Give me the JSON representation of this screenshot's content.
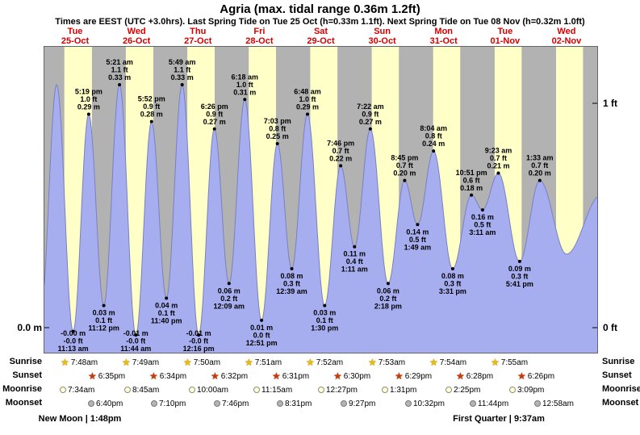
{
  "title": "Agria (max. tidal range 0.36m 1.2ft)",
  "subtitle": "Times are EEST (UTC +3.0hrs). Last Spring Tide on Tue 25 Oct (h=0.33m 1.1ft). Next Spring Tide on Tue 08 Nov (h=0.32m 1.0ft)",
  "axis": {
    "left": "0.0 m",
    "right_top": "1 ft",
    "right_bottom": "0 ft"
  },
  "days": [
    {
      "weekday": "Tue",
      "date": "25-Oct"
    },
    {
      "weekday": "Wed",
      "date": "26-Oct"
    },
    {
      "weekday": "Thu",
      "date": "27-Oct"
    },
    {
      "weekday": "Fri",
      "date": "28-Oct"
    },
    {
      "weekday": "Sat",
      "date": "29-Oct"
    },
    {
      "weekday": "Sun",
      "date": "30-Oct"
    },
    {
      "weekday": "Mon",
      "date": "31-Oct"
    },
    {
      "weekday": "Tue",
      "date": "01-Nov"
    },
    {
      "weekday": "Wed",
      "date": "02-Nov"
    }
  ],
  "chart_data": {
    "type": "area",
    "unit": "m",
    "ylim": [
      -0.034,
      0.382
    ],
    "highs": [
      {
        "day": 0,
        "time": "5:19 pm",
        "ft": "1.0 ft",
        "m": "0.29 m",
        "v": 0.29
      },
      {
        "day": 1,
        "time": "5:21 am",
        "ft": "1.1 ft",
        "m": "0.33 m",
        "v": 0.33
      },
      {
        "day": 1,
        "time": "5:52 pm",
        "ft": "0.9 ft",
        "m": "0.28 m",
        "v": 0.28
      },
      {
        "day": 2,
        "time": "5:49 am",
        "ft": "1.1 ft",
        "m": "0.33 m",
        "v": 0.33
      },
      {
        "day": 2,
        "time": "6:26 pm",
        "ft": "0.9 ft",
        "m": "0.27 m",
        "v": 0.27
      },
      {
        "day": 3,
        "time": "6:18 am",
        "ft": "1.0 ft",
        "m": "0.31 m",
        "v": 0.31
      },
      {
        "day": 3,
        "time": "7:03 pm",
        "ft": "0.8 ft",
        "m": "0.25 m",
        "v": 0.25
      },
      {
        "day": 4,
        "time": "6:48 am",
        "ft": "1.0 ft",
        "m": "0.29 m",
        "v": 0.29
      },
      {
        "day": 4,
        "time": "7:46 pm",
        "ft": "0.7 ft",
        "m": "0.22 m",
        "v": 0.22
      },
      {
        "day": 5,
        "time": "7:22 am",
        "ft": "0.9 ft",
        "m": "0.27 m",
        "v": 0.27
      },
      {
        "day": 5,
        "time": "8:45 pm",
        "ft": "0.7 ft",
        "m": "0.20 m",
        "v": 0.2
      },
      {
        "day": 6,
        "time": "8:04 am",
        "ft": "0.8 ft",
        "m": "0.24 m",
        "v": 0.24
      },
      {
        "day": 6,
        "time": "10:51 pm",
        "ft": "0.6 ft",
        "m": "0.18 m",
        "v": 0.18
      },
      {
        "day": 7,
        "time": "9:23 am",
        "ft": "0.7 ft",
        "m": "0.21 m",
        "v": 0.21
      },
      {
        "day": 8,
        "time": "1:33 am",
        "ft": "0.7 ft",
        "m": "0.20 m",
        "v": 0.2
      }
    ],
    "lows": [
      {
        "day": 0,
        "time": "11:13 am",
        "ft": "-0.0 ft",
        "m": "-0.00 m",
        "v": -0.005
      },
      {
        "day": 0,
        "time": "11:12 pm",
        "ft": "0.1 ft",
        "m": "0.03 m",
        "v": 0.03
      },
      {
        "day": 1,
        "time": "11:44 am",
        "ft": "-0.0 ft",
        "m": "-0.01 m",
        "v": -0.01
      },
      {
        "day": 1,
        "time": "11:40 pm",
        "ft": "0.1 ft",
        "m": "0.04 m",
        "v": 0.04
      },
      {
        "day": 2,
        "time": "12:16 pm",
        "ft": "-0.0 ft",
        "m": "-0.01 m",
        "v": -0.01
      },
      {
        "day": 3,
        "time": "12:09 am",
        "ft": "0.2 ft",
        "m": "0.06 m",
        "v": 0.06
      },
      {
        "day": 3,
        "time": "12:51 pm",
        "ft": "0.0 ft",
        "m": "0.01 m",
        "v": 0.01
      },
      {
        "day": 4,
        "time": "12:39 am",
        "ft": "0.3 ft",
        "m": "0.08 m",
        "v": 0.08
      },
      {
        "day": 4,
        "time": "1:30 pm",
        "ft": "0.1 ft",
        "m": "0.03 m",
        "v": 0.03
      },
      {
        "day": 5,
        "time": "1:11 am",
        "ft": "0.4 ft",
        "m": "0.11 m",
        "v": 0.11
      },
      {
        "day": 5,
        "time": "2:18 pm",
        "ft": "0.2 ft",
        "m": "0.06 m",
        "v": 0.06
      },
      {
        "day": 6,
        "time": "1:49 am",
        "ft": "0.5 ft",
        "m": "0.14 m",
        "v": 0.14
      },
      {
        "day": 6,
        "time": "3:31 pm",
        "ft": "0.3 ft",
        "m": "0.08 m",
        "v": 0.08
      },
      {
        "day": 7,
        "time": "3:11 am",
        "ft": "0.5 ft",
        "m": "0.16 m",
        "v": 0.16
      },
      {
        "day": 7,
        "time": "5:41 pm",
        "ft": "0.3 ft",
        "m": "0.09 m",
        "v": 0.09
      }
    ],
    "edge_anchors": [
      {
        "t": -0.06,
        "v": 0.02
      },
      {
        "t": 0.2,
        "v": 0.33
      },
      {
        "t": 8.5,
        "v": 0.1
      },
      {
        "t": 9.06,
        "v": 0.18
      }
    ]
  },
  "almanac": {
    "rows": [
      {
        "key": "sunrise",
        "label": "Sunrise",
        "icon": "sunrise-star-icon",
        "entries": [
          {
            "day": 0,
            "time": "7:48am"
          },
          {
            "day": 1,
            "time": "7:49am"
          },
          {
            "day": 2,
            "time": "7:50am"
          },
          {
            "day": 3,
            "time": "7:51am"
          },
          {
            "day": 4,
            "time": "7:52am"
          },
          {
            "day": 5,
            "time": "7:53am"
          },
          {
            "day": 6,
            "time": "7:54am"
          },
          {
            "day": 7,
            "time": "7:55am"
          }
        ]
      },
      {
        "key": "sunset",
        "label": "Sunset",
        "icon": "sunset-star-icon",
        "entries": [
          {
            "day": 0,
            "time": "6:35pm"
          },
          {
            "day": 1,
            "time": "6:34pm"
          },
          {
            "day": 2,
            "time": "6:32pm"
          },
          {
            "day": 3,
            "time": "6:31pm"
          },
          {
            "day": 4,
            "time": "6:30pm"
          },
          {
            "day": 5,
            "time": "6:29pm"
          },
          {
            "day": 6,
            "time": "6:28pm"
          },
          {
            "day": 7,
            "time": "6:26pm"
          }
        ]
      },
      {
        "key": "moonrise",
        "label": "Moonrise",
        "icon": "moonrise-moon-icon",
        "entries": [
          {
            "day": 0,
            "time": "7:34am"
          },
          {
            "day": 1,
            "time": "8:45am"
          },
          {
            "day": 2,
            "time": "10:00am"
          },
          {
            "day": 3,
            "time": "11:15am"
          },
          {
            "day": 4,
            "time": "12:27pm"
          },
          {
            "day": 5,
            "time": "1:31pm"
          },
          {
            "day": 6,
            "time": "2:25pm"
          },
          {
            "day": 7,
            "time": "3:09pm"
          }
        ]
      },
      {
        "key": "moonset",
        "label": "Moonset",
        "icon": "moonset-moon-icon",
        "entries": [
          {
            "day": 0,
            "time": "6:40pm"
          },
          {
            "day": 1,
            "time": "7:10pm"
          },
          {
            "day": 2,
            "time": "7:46pm"
          },
          {
            "day": 3,
            "time": "8:31pm"
          },
          {
            "day": 4,
            "time": "9:27pm"
          },
          {
            "day": 5,
            "time": "10:32pm"
          },
          {
            "day": 6,
            "time": "11:44pm"
          },
          {
            "day": 8,
            "time": "12:58am"
          }
        ]
      }
    ],
    "phases": [
      {
        "label": "New Moon | 1:48pm",
        "day": 0,
        "time": "1:48pm"
      },
      {
        "label": "First Quarter | 9:37am",
        "day": 7,
        "time": "9:37am"
      }
    ]
  },
  "colors": {
    "day_band": "#ffffc8",
    "night_band": "#b2b2b2",
    "tide_fill": "#a6aef0",
    "tide_stroke": "#7880c0",
    "day_label_red": "#d40000"
  }
}
